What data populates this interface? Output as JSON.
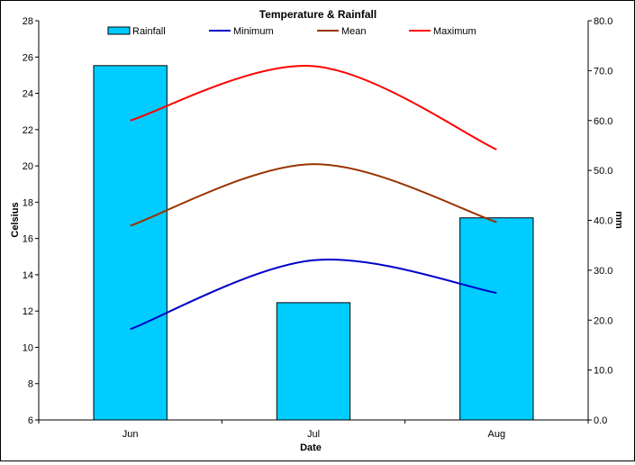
{
  "chart_data": {
    "type": "bar",
    "title": "Temperature & Rainfall",
    "xlabel": "Date",
    "ylabel": "Celsius",
    "y2label": "mm",
    "categories": [
      "Jun",
      "Jul",
      "Aug"
    ],
    "ylim": [
      6,
      28
    ],
    "y2lim": [
      0,
      80
    ],
    "yticks": [
      "6",
      "8",
      "10",
      "12",
      "14",
      "16",
      "18",
      "20",
      "22",
      "24",
      "26",
      "28"
    ],
    "y2ticks": [
      "0.0",
      "10.0",
      "20.0",
      "30.0",
      "40.0",
      "50.0",
      "60.0",
      "70.0",
      "80.0"
    ],
    "grid": false,
    "legend_position": "top",
    "series": [
      {
        "name": "Rainfall",
        "kind": "bar",
        "axis": "right",
        "color": "#00CCFF",
        "values": [
          71.0,
          23.5,
          40.5
        ]
      },
      {
        "name": "Minimum",
        "kind": "line",
        "axis": "left",
        "color": "#0000CC",
        "values": [
          11.0,
          14.8,
          13.0
        ]
      },
      {
        "name": "Mean",
        "kind": "line",
        "axis": "left",
        "color": "#993300",
        "values": [
          16.7,
          20.1,
          16.9
        ]
      },
      {
        "name": "Maximum",
        "kind": "line",
        "axis": "left",
        "color": "#FF0000",
        "values": [
          22.5,
          25.5,
          20.9
        ]
      }
    ]
  }
}
